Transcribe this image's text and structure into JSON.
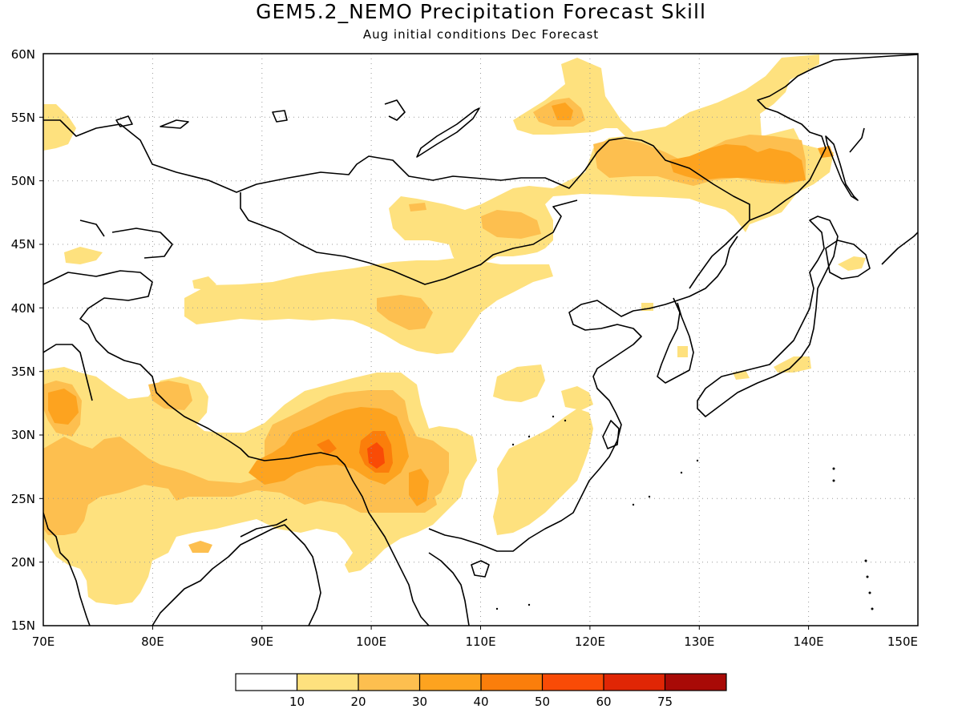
{
  "title": "GEM5.2_NEMO Precipitation Forecast Skill",
  "subtitle": "Aug initial conditions  Dec Forecast",
  "colors": {
    "c10": "#fee17e",
    "c20": "#fdbf4f",
    "c30": "#fda31f",
    "c40": "#fb7e0b",
    "c50": "#f94b06",
    "c60": "#e02605",
    "c75": "#a80a06"
  },
  "map": {
    "lon_ticks": [
      "70E",
      "80E",
      "90E",
      "100E",
      "110E",
      "120E",
      "130E",
      "140E",
      "150E"
    ],
    "lat_ticks": [
      "15N",
      "20N",
      "25N",
      "30N",
      "35N",
      "40N",
      "45N",
      "50N",
      "55N",
      "60N"
    ]
  },
  "colorbar": {
    "labels": [
      "10",
      "20",
      "30",
      "40",
      "50",
      "60",
      "75"
    ]
  },
  "chart_data": {
    "type": "heatmap",
    "title": "GEM5.2_NEMO Precipitation Forecast Skill",
    "subtitle": "Aug initial conditions  Dec Forecast",
    "x_range": [
      70,
      150
    ],
    "y_range": [
      15,
      60
    ],
    "grid": true,
    "levels": [
      10,
      20,
      30,
      40,
      50,
      60,
      75
    ],
    "level_colors": [
      "#fee17e",
      "#fdbf4f",
      "#fda31f",
      "#fb7e0b",
      "#f94b06",
      "#e02605",
      "#a80a06"
    ]
  }
}
